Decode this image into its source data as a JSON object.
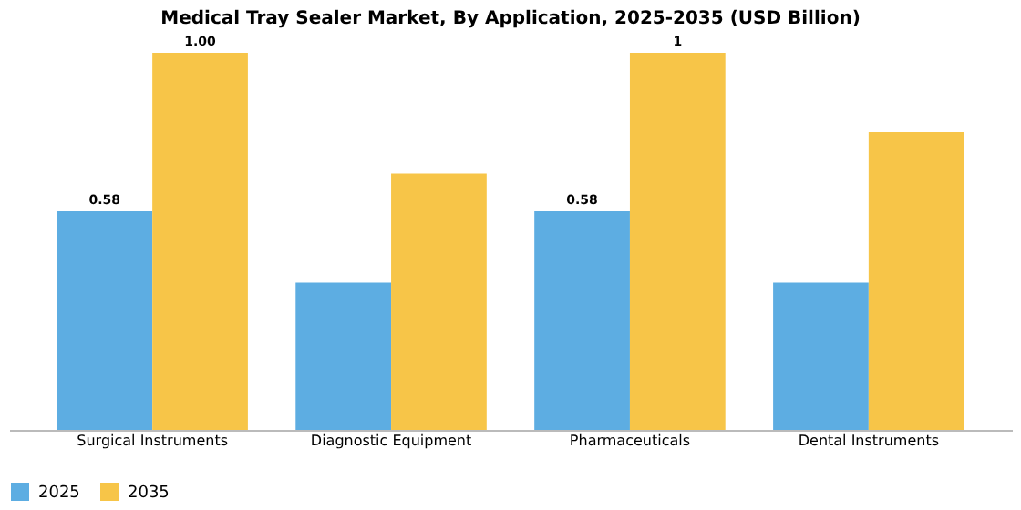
{
  "chart_data": {
    "type": "bar",
    "title": "Medical Tray Sealer Market, By Application, 2025-2035 (USD Billion)",
    "categories": [
      "Surgical Instruments",
      "Diagnostic Equipment",
      "Pharmaceuticals",
      "Dental Instruments"
    ],
    "series": [
      {
        "name": "2025",
        "color": "#5dade2",
        "values": [
          0.58,
          0.39,
          0.58,
          0.39
        ],
        "value_labels": [
          "0.58",
          null,
          "0.58",
          null
        ]
      },
      {
        "name": "2035",
        "color": "#f7c548",
        "values": [
          1.0,
          0.68,
          1.0,
          0.79
        ],
        "value_labels": [
          "1.00",
          null,
          "1",
          null
        ]
      }
    ],
    "legend": "bottom",
    "grid": false
  }
}
